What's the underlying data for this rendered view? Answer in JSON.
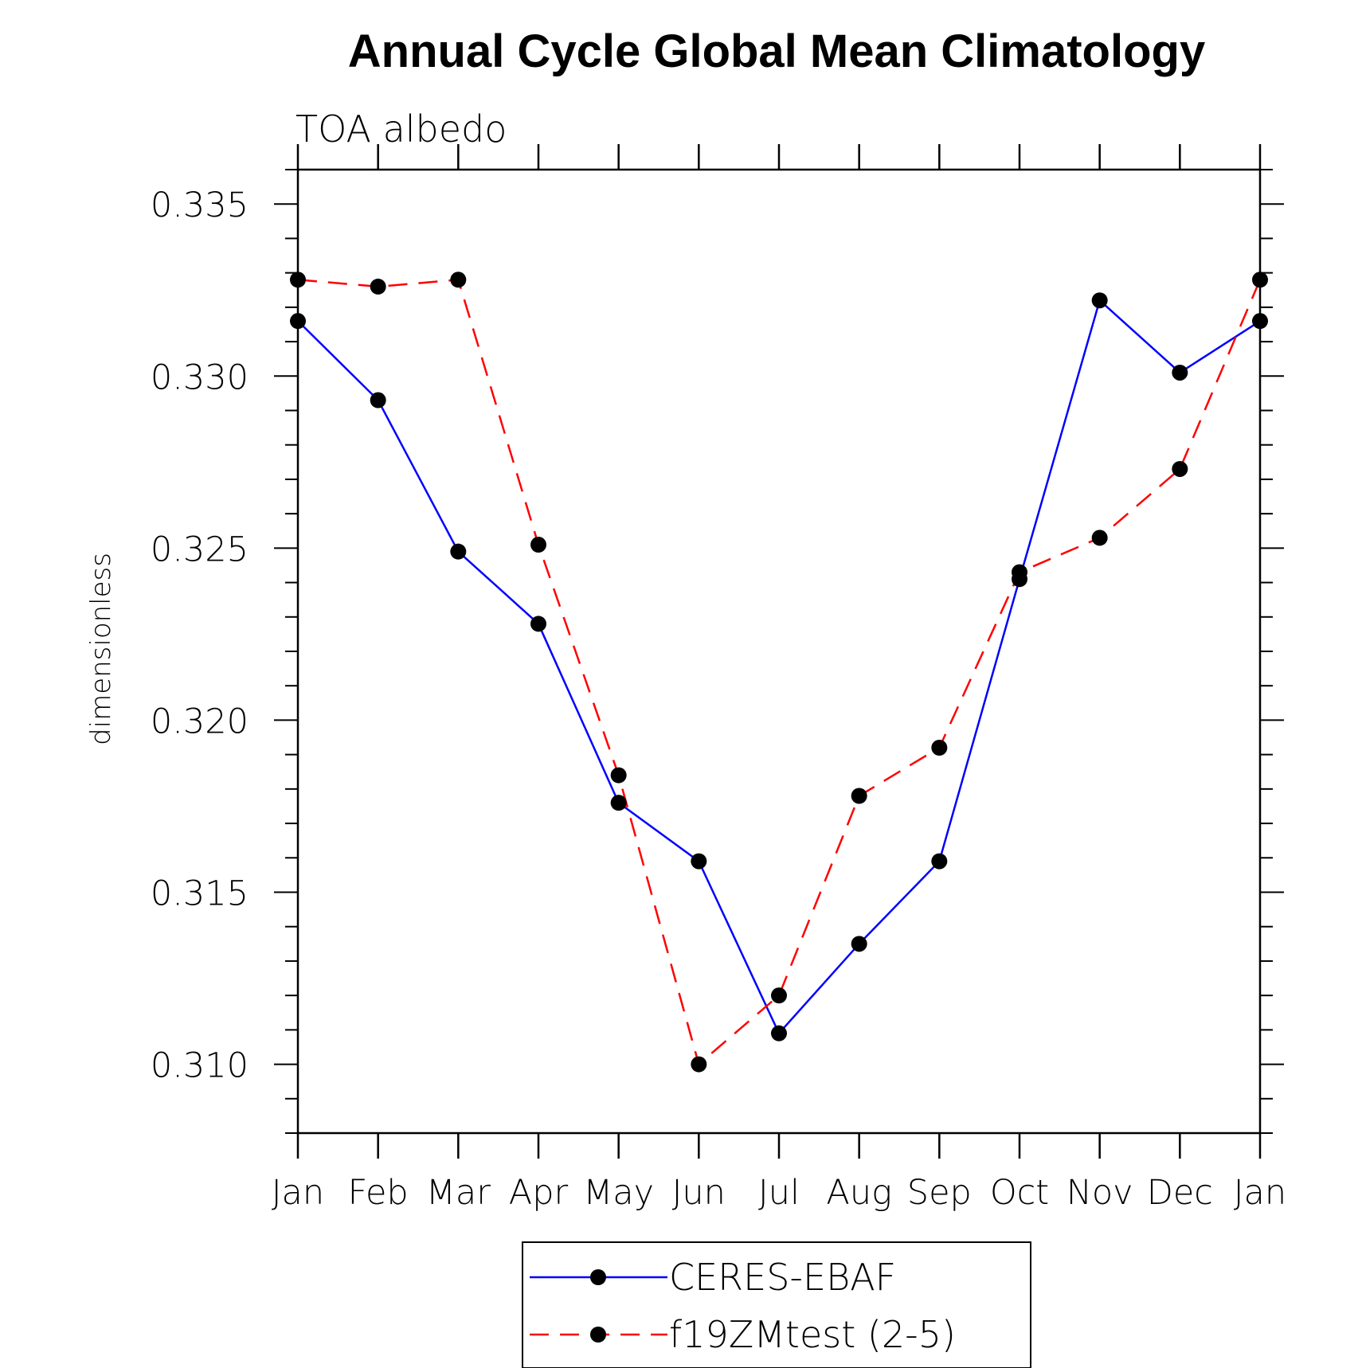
{
  "chart_data": {
    "type": "line",
    "title": "Annual Cycle Global Mean Climatology",
    "subtitle": "TOA albedo",
    "xlabel": "",
    "ylabel": "dimensionless",
    "categories": [
      "Jan",
      "Feb",
      "Mar",
      "Apr",
      "May",
      "Jun",
      "Jul",
      "Aug",
      "Sep",
      "Oct",
      "Nov",
      "Dec",
      "Jan"
    ],
    "ylim": [
      0.308,
      0.336
    ],
    "yticks": [
      "0.310",
      "0.315",
      "0.320",
      "0.325",
      "0.330",
      "0.335"
    ],
    "grid": false,
    "legend_position": "bottom",
    "series": [
      {
        "name": "CERES-EBAF",
        "color": "#0000ff",
        "line_style": "solid",
        "marker": "filled-circle",
        "values": [
          0.3316,
          0.3293,
          0.3249,
          0.3228,
          0.3176,
          0.3159,
          0.3109,
          0.3135,
          0.3159,
          0.3241,
          0.3322,
          0.3301,
          0.3316
        ]
      },
      {
        "name": "f19ZMtest (2-5)",
        "color": "#ff0000",
        "line_style": "dashed",
        "marker": "filled-circle",
        "values": [
          0.3328,
          0.3326,
          0.3328,
          0.3251,
          0.3184,
          0.31,
          0.312,
          0.3178,
          0.3192,
          0.3243,
          0.3253,
          0.3273,
          0.3328
        ]
      }
    ]
  }
}
